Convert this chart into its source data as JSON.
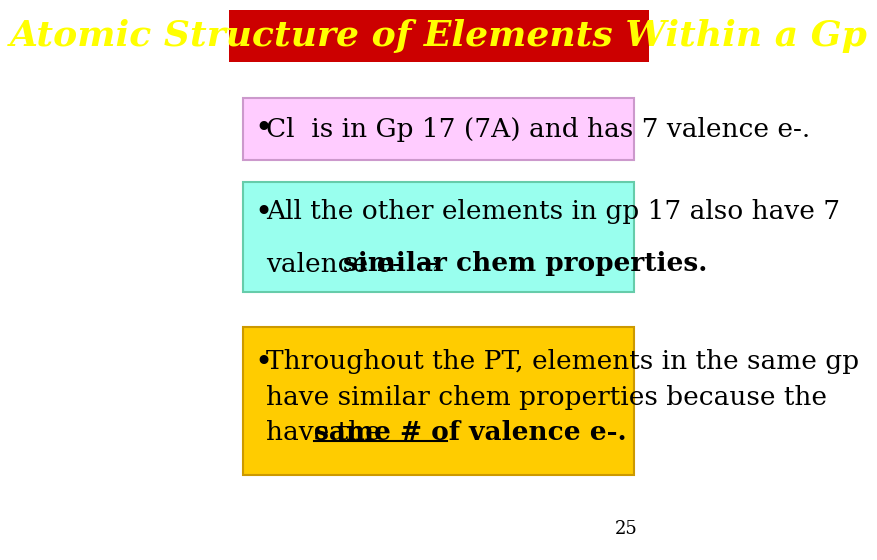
{
  "title": "Atomic Structure of Elements Within a Gp",
  "title_bg": "#cc0000",
  "title_color": "#ffff00",
  "slide_bg": "#ffffff",
  "bullet1_text": "Cl  is in Gp 17 (7A) and has 7 valence e-.",
  "bullet1_bg": "#ffccff",
  "bullet1_border": "#cc99cc",
  "bullet2_line1": "All the other elements in gp 17 also have 7",
  "bullet2_line2_normal": "valence e-  → ",
  "bullet2_line2_bold": "similar chem properties.",
  "bullet2_bg": "#99ffee",
  "bullet2_border": "#66ccaa",
  "bullet3_line1": "Throughout the PT, elements in the same gp",
  "bullet3_line2": "have similar chem properties because the",
  "bullet3_line3_normal": "have the ",
  "bullet3_line3_bold_underline": "same # of valence e-.",
  "bullet3_bg": "#ffcc00",
  "bullet3_border": "#cc9900",
  "page_num": "25",
  "font_size_title": 26,
  "font_size_bullet": 19
}
